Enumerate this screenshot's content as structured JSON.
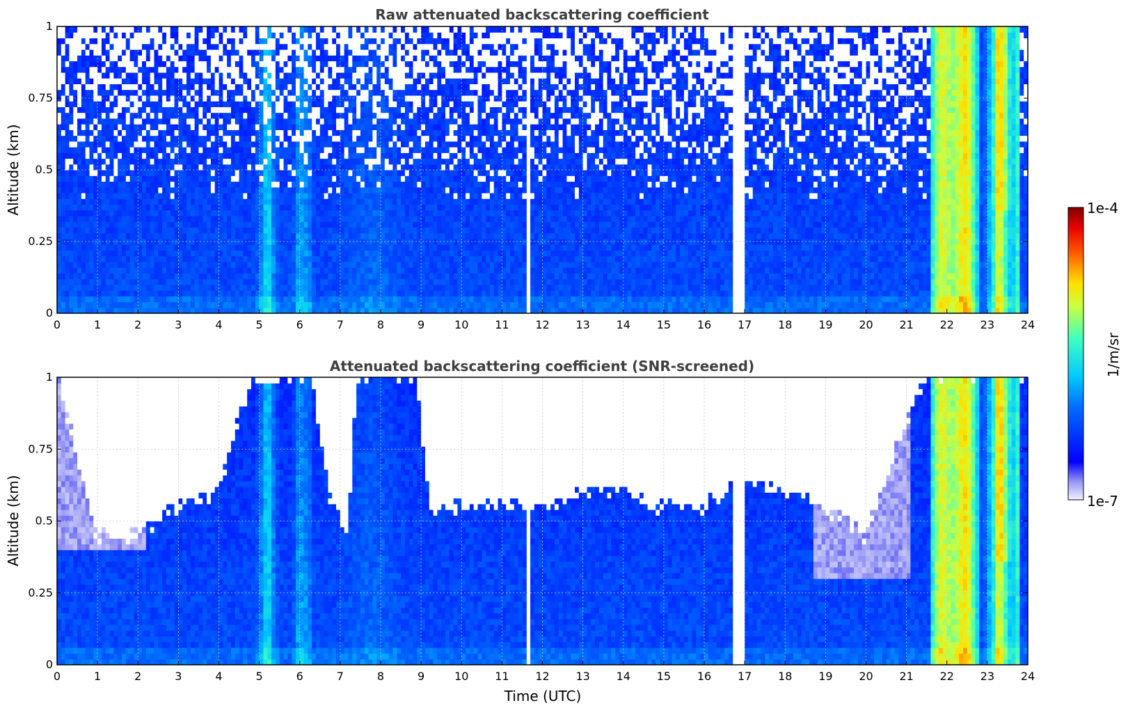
{
  "chart_data": [
    {
      "type": "heatmap",
      "title": "Raw attenuated backscattering coefficient",
      "xlabel": "",
      "ylabel": "Altitude (km)",
      "xlim": [
        0,
        24
      ],
      "ylim": [
        0,
        1
      ],
      "x_ticks": [
        "0",
        "1",
        "2",
        "3",
        "4",
        "5",
        "6",
        "7",
        "8",
        "9",
        "10",
        "11",
        "12",
        "13",
        "14",
        "15",
        "16",
        "17",
        "18",
        "19",
        "20",
        "21",
        "22",
        "23",
        "24"
      ],
      "y_ticks": [
        "0",
        "0.25",
        "0.5",
        "0.75",
        "1"
      ],
      "grid": true,
      "colormap": "jet (white at low end)",
      "value_range": [
        "1e-7",
        "1e-4"
      ],
      "features": [
        {
          "desc": "strong backscatter column",
          "x": [
            5.0,
            5.4
          ],
          "level": "high"
        },
        {
          "desc": "moderate backscatter columns",
          "x": [
            5.9,
            6.3
          ],
          "level": "medium"
        },
        {
          "desc": "no data gap",
          "x": [
            11.5,
            11.7
          ]
        },
        {
          "desc": "no data gap",
          "x": [
            16.7,
            17.0
          ]
        },
        {
          "desc": "intense backscatter region",
          "x": [
            21.6,
            23.8
          ],
          "level": "very high"
        }
      ]
    },
    {
      "type": "heatmap",
      "title": "Attenuated backscattering coefficient (SNR-screened)",
      "xlabel": "Time (UTC)",
      "ylabel": "Altitude (km)",
      "xlim": [
        0,
        24
      ],
      "ylim": [
        0,
        1
      ],
      "x_ticks": [
        "0",
        "1",
        "2",
        "3",
        "4",
        "5",
        "6",
        "7",
        "8",
        "9",
        "10",
        "11",
        "12",
        "13",
        "14",
        "15",
        "16",
        "17",
        "18",
        "19",
        "20",
        "21",
        "22",
        "23",
        "24"
      ],
      "y_ticks": [
        "0",
        "0.25",
        "0.5",
        "0.75",
        "1"
      ],
      "grid": true,
      "colormap": "jet (white at low end)",
      "value_range": [
        "1e-7",
        "1e-4"
      ],
      "screened_top_km": [
        [
          0,
          1.0
        ],
        [
          1,
          0.45
        ],
        [
          2,
          0.45
        ],
        [
          3,
          0.55
        ],
        [
          4,
          0.6
        ],
        [
          4.8,
          1.0
        ],
        [
          6.3,
          1.0
        ],
        [
          6.8,
          0.55
        ],
        [
          7.2,
          0.45
        ],
        [
          7.4,
          1.0
        ],
        [
          8.9,
          1.0
        ],
        [
          9.2,
          0.55
        ],
        [
          10,
          0.55
        ],
        [
          11,
          0.55
        ],
        [
          12,
          0.55
        ],
        [
          13,
          0.6
        ],
        [
          14,
          0.6
        ],
        [
          15,
          0.55
        ],
        [
          16,
          0.55
        ],
        [
          17,
          0.65
        ],
        [
          18,
          0.6
        ],
        [
          19,
          0.55
        ],
        [
          20,
          0.45
        ],
        [
          21,
          0.85
        ],
        [
          21.5,
          1.0
        ],
        [
          24,
          1.0
        ]
      ]
    }
  ],
  "colorbar": {
    "max_label": "1e-4",
    "min_label": "1e-7",
    "unit_label": "1/m/sr"
  }
}
